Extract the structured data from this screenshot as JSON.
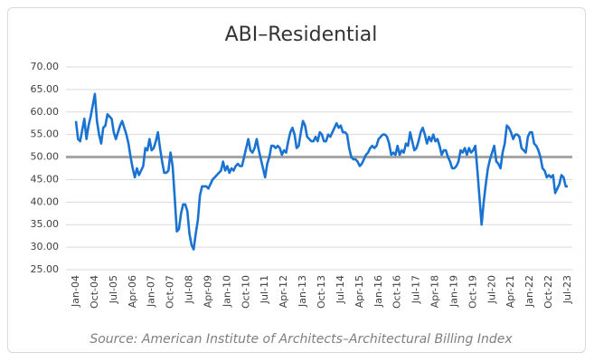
{
  "chart_data": {
    "type": "line",
    "title": "ABI–Residential",
    "source": "Source: American Institute of Architects–Architectural Billing Index",
    "categories": [
      "Jan-04",
      null,
      null,
      null,
      null,
      null,
      null,
      null,
      null,
      "Oct-04",
      null,
      null,
      null,
      null,
      null,
      null,
      null,
      null,
      "Jul-05",
      null,
      null,
      null,
      null,
      null,
      null,
      null,
      null,
      "Apr-06",
      null,
      null,
      null,
      null,
      null,
      null,
      null,
      null,
      "Jan-07",
      null,
      null,
      null,
      null,
      null,
      null,
      null,
      null,
      "Oct-07",
      null,
      null,
      null,
      null,
      null,
      null,
      null,
      null,
      "Jul-08",
      null,
      null,
      null,
      null,
      null,
      null,
      null,
      null,
      "Apr-09",
      null,
      null,
      null,
      null,
      null,
      null,
      null,
      null,
      "Jan-10",
      null,
      null,
      null,
      null,
      null,
      null,
      null,
      null,
      "Oct-10",
      null,
      null,
      null,
      null,
      null,
      null,
      null,
      null,
      "Jul-11",
      null,
      null,
      null,
      null,
      null,
      null,
      null,
      null,
      "Apr-12",
      null,
      null,
      null,
      null,
      null,
      null,
      null,
      null,
      "Jan-13",
      null,
      null,
      null,
      null,
      null,
      null,
      null,
      null,
      "Oct-13",
      null,
      null,
      null,
      null,
      null,
      null,
      null,
      null,
      "Jul-14",
      null,
      null,
      null,
      null,
      null,
      null,
      null,
      null,
      "Apr-15",
      null,
      null,
      null,
      null,
      null,
      null,
      null,
      null,
      "Jan-16",
      null,
      null,
      null,
      null,
      null,
      null,
      null,
      null,
      "Oct-16",
      null,
      null,
      null,
      null,
      null,
      null,
      null,
      null,
      "Jul-17",
      null,
      null,
      null,
      null,
      null,
      null,
      null,
      null,
      "Apr-18",
      null,
      null,
      null,
      null,
      null,
      null,
      null,
      null,
      "Jan-19",
      null,
      null,
      null,
      null,
      null,
      null,
      null,
      null,
      "Oct-19",
      null,
      null,
      null,
      null,
      null,
      null,
      null,
      null,
      "Jul-20",
      null,
      null,
      null,
      null,
      null,
      null,
      null,
      null,
      "Apr-21",
      null,
      null,
      null,
      null,
      null,
      null,
      null,
      null,
      "Jan-22",
      null,
      null,
      null,
      null,
      null,
      null,
      null,
      null,
      "Oct-22",
      null,
      null,
      null,
      null,
      null,
      null,
      null,
      null,
      "Jul-23"
    ],
    "values": [
      58,
      54,
      53.5,
      56,
      58.5,
      54,
      57,
      59,
      61.5,
      64,
      58,
      55,
      53,
      56.5,
      57,
      59.5,
      59,
      58.5,
      55.5,
      54,
      55.5,
      57,
      58,
      56.5,
      55,
      53,
      50,
      47.5,
      45.5,
      47.5,
      46,
      47,
      48,
      52,
      51.5,
      54,
      51.5,
      52,
      53.5,
      55.5,
      52,
      49,
      46.5,
      46.5,
      47,
      51,
      48,
      41,
      33.5,
      34,
      37.5,
      39.5,
      39.5,
      38,
      33,
      30.5,
      29.5,
      33,
      36,
      41.5,
      43.5,
      43.5,
      43.5,
      43,
      44,
      45,
      45.5,
      46,
      46.5,
      47,
      49,
      47,
      48,
      46.5,
      47.5,
      47,
      48,
      48.5,
      48,
      48,
      50,
      52,
      54,
      51.5,
      51,
      52,
      54,
      51.5,
      49.5,
      47.5,
      45.5,
      48.5,
      50,
      52.5,
      52.5,
      52,
      52.5,
      52,
      50.5,
      51.5,
      51,
      53.5,
      55.5,
      56.5,
      55,
      52,
      52.5,
      55.5,
      58,
      57,
      54.5,
      54,
      53.5,
      53.5,
      54.5,
      53.5,
      55.5,
      55,
      53.5,
      53.5,
      55,
      54.5,
      55.5,
      56.5,
      57.5,
      56.5,
      57,
      55.5,
      55.5,
      55,
      52,
      50,
      49.5,
      49.5,
      49,
      48,
      48.5,
      49.5,
      50.5,
      51,
      52,
      52.5,
      52,
      52.5,
      54,
      54.5,
      55,
      55,
      54.5,
      53,
      50.5,
      51,
      50.5,
      52.5,
      50.5,
      51.5,
      51,
      53,
      52.5,
      55.5,
      53.5,
      51.5,
      52,
      53.5,
      55.5,
      56.5,
      55,
      53,
      54.5,
      53.5,
      55,
      53.5,
      54,
      52.5,
      50.5,
      51.5,
      51.5,
      50,
      49,
      47.5,
      47.5,
      48,
      49,
      51.5,
      51,
      52,
      50.5,
      52,
      51,
      51.5,
      52.5,
      47,
      41,
      35,
      40,
      44,
      47.5,
      49.5,
      51,
      52.5,
      49,
      48.5,
      47.5,
      51,
      53,
      57,
      56.5,
      55.5,
      54,
      55,
      55,
      54.5,
      52,
      51.5,
      51,
      54.5,
      55.5,
      55.5,
      53,
      52.5,
      51.5,
      50,
      47.5,
      47,
      45.5,
      46,
      45.5,
      46,
      42,
      43,
      44,
      46,
      45.5,
      43.5,
      43.5
    ],
    "color": "#1a73d1",
    "reference_line": 50,
    "reference_color": "#a6a6a6",
    "ylim": [
      25,
      70
    ],
    "yticks": [
      {
        "value": 25,
        "label": "25.00"
      },
      {
        "value": 30,
        "label": "30.00"
      },
      {
        "value": 35,
        "label": "35.00"
      },
      {
        "value": 40,
        "label": "40.00"
      },
      {
        "value": 45,
        "label": "45.00"
      },
      {
        "value": 50,
        "label": "50.00"
      },
      {
        "value": 55,
        "label": "55.00"
      },
      {
        "value": 60,
        "label": "60.00"
      },
      {
        "value": 65,
        "label": "65.00"
      },
      {
        "value": 70,
        "label": "70.00"
      }
    ],
    "grid": true
  }
}
